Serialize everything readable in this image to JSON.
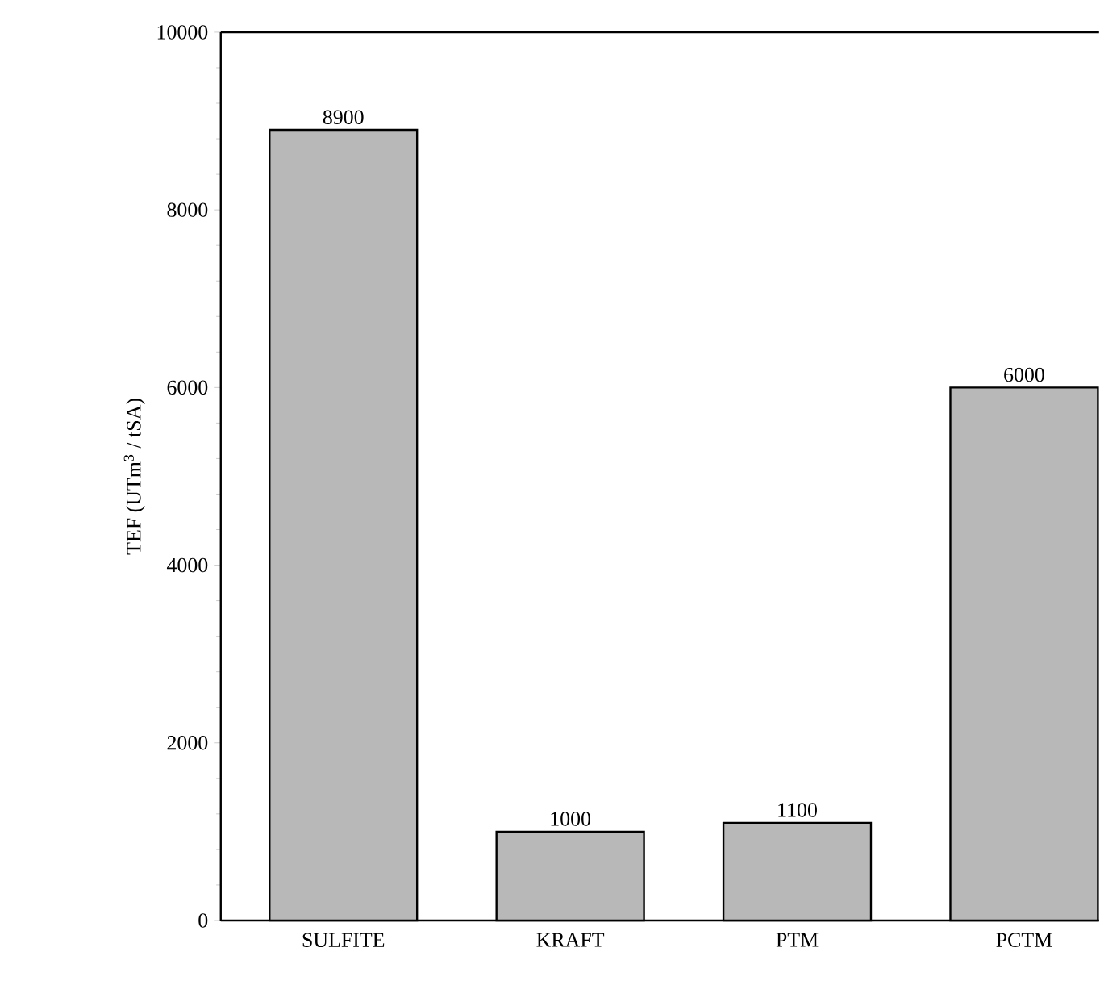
{
  "chart_data": {
    "type": "bar",
    "ylabel": "TEF (UTm$^{3}$ / tSA)",
    "categories": [
      "SULFITE",
      "KRAFT",
      "PTM",
      "PCTM"
    ],
    "values": [
      8900,
      1000,
      1100,
      6000
    ],
    "color": "#b8b8b8",
    "ylim": [
      0,
      10000
    ],
    "yticks": [
      0,
      2000,
      4000,
      6000,
      8000,
      10000
    ],
    "data_labels": true
  }
}
